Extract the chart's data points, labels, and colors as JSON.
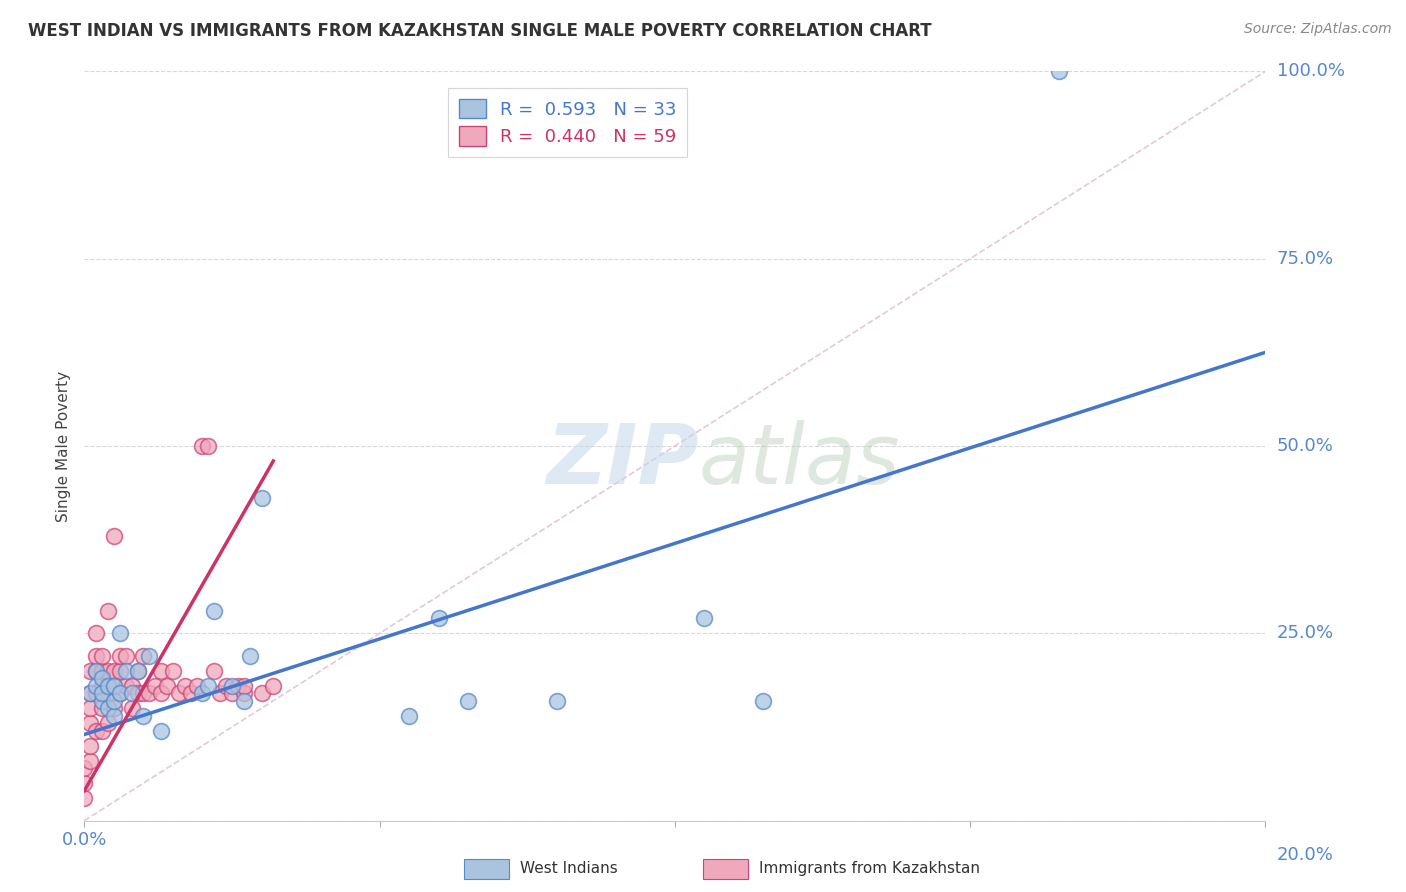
{
  "title": "WEST INDIAN VS IMMIGRANTS FROM KAZAKHSTAN SINGLE MALE POVERTY CORRELATION CHART",
  "source": "Source: ZipAtlas.com",
  "ylabel": "Single Male Poverty",
  "background_color": "#ffffff",
  "blue_color": "#aac4e0",
  "pink_color": "#f0a8bc",
  "blue_edge_color": "#5588cc",
  "pink_edge_color": "#cc4477",
  "blue_line_color": "#4477cc",
  "pink_line_color": "#cc3366",
  "diag_color": "#cccccc",
  "grid_color": "#d8d8d8",
  "legend_blue_label": "R =  0.593   N = 33",
  "legend_pink_label": "R =  0.440   N = 59",
  "xlim": [
    0.0,
    0.2
  ],
  "ylim": [
    0.0,
    1.0
  ],
  "x_ticks": [
    0.0,
    0.05,
    0.1,
    0.15,
    0.2
  ],
  "y_ticks": [
    0.0,
    0.25,
    0.5,
    0.75,
    1.0
  ],
  "blue_scatter_x": [
    0.001,
    0.002,
    0.002,
    0.003,
    0.003,
    0.003,
    0.004,
    0.004,
    0.005,
    0.005,
    0.005,
    0.006,
    0.006,
    0.007,
    0.008,
    0.009,
    0.01,
    0.011,
    0.013,
    0.02,
    0.021,
    0.022,
    0.025,
    0.027,
    0.028,
    0.03,
    0.055,
    0.06,
    0.065,
    0.08,
    0.105,
    0.115,
    0.165
  ],
  "blue_scatter_y": [
    0.17,
    0.18,
    0.2,
    0.16,
    0.17,
    0.19,
    0.15,
    0.18,
    0.14,
    0.16,
    0.18,
    0.17,
    0.25,
    0.2,
    0.17,
    0.2,
    0.14,
    0.22,
    0.12,
    0.17,
    0.18,
    0.28,
    0.18,
    0.16,
    0.22,
    0.43,
    0.14,
    0.27,
    0.16,
    0.16,
    0.27,
    0.16,
    1.0
  ],
  "pink_scatter_x": [
    0.0,
    0.0,
    0.0,
    0.001,
    0.001,
    0.001,
    0.001,
    0.001,
    0.001,
    0.002,
    0.002,
    0.002,
    0.002,
    0.002,
    0.003,
    0.003,
    0.003,
    0.003,
    0.003,
    0.004,
    0.004,
    0.004,
    0.004,
    0.005,
    0.005,
    0.005,
    0.005,
    0.006,
    0.006,
    0.006,
    0.007,
    0.007,
    0.008,
    0.008,
    0.009,
    0.009,
    0.01,
    0.01,
    0.011,
    0.012,
    0.013,
    0.013,
    0.014,
    0.015,
    0.016,
    0.017,
    0.018,
    0.019,
    0.02,
    0.021,
    0.022,
    0.023,
    0.024,
    0.025,
    0.026,
    0.027,
    0.027,
    0.03,
    0.032
  ],
  "pink_scatter_y": [
    0.03,
    0.05,
    0.07,
    0.08,
    0.1,
    0.13,
    0.15,
    0.17,
    0.2,
    0.12,
    0.17,
    0.2,
    0.22,
    0.25,
    0.12,
    0.15,
    0.18,
    0.2,
    0.22,
    0.13,
    0.17,
    0.2,
    0.28,
    0.15,
    0.18,
    0.2,
    0.38,
    0.17,
    0.2,
    0.22,
    0.18,
    0.22,
    0.15,
    0.18,
    0.17,
    0.2,
    0.17,
    0.22,
    0.17,
    0.18,
    0.17,
    0.2,
    0.18,
    0.2,
    0.17,
    0.18,
    0.17,
    0.18,
    0.5,
    0.5,
    0.2,
    0.17,
    0.18,
    0.17,
    0.18,
    0.17,
    0.18,
    0.17,
    0.18
  ],
  "blue_line_x": [
    0.0,
    0.2
  ],
  "blue_line_y": [
    0.115,
    0.625
  ],
  "pink_line_x": [
    0.0,
    0.032
  ],
  "pink_line_y": [
    0.04,
    0.48
  ],
  "diag_line_x": [
    0.0,
    0.2
  ],
  "diag_line_y": [
    0.0,
    1.0
  ]
}
